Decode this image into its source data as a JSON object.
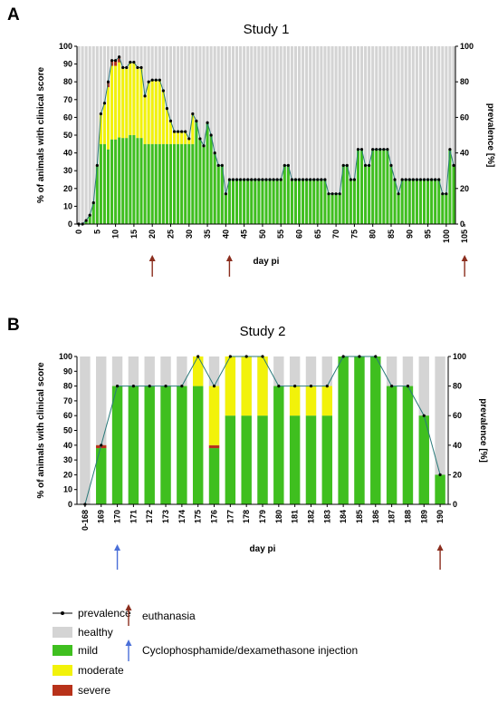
{
  "chart_data": [
    {
      "type": "bar",
      "panel_label": "A",
      "title": "Study 1",
      "xlabel": "day pi",
      "ylabel": "% of animals with clinical score",
      "y2label": "prevalence [%]",
      "ylim": [
        0,
        100
      ],
      "y_ticks": [
        0,
        10,
        20,
        30,
        40,
        50,
        60,
        70,
        80,
        90,
        100
      ],
      "y2_ticks": [
        0,
        20,
        40,
        60,
        80,
        100
      ],
      "x_ticks": [
        "0",
        "5",
        "10",
        "15",
        "20",
        "25",
        "30",
        "35",
        "40",
        "45",
        "50",
        "55",
        "60",
        "65",
        "70",
        "75",
        "80",
        "85",
        "90",
        "95",
        "100",
        "105"
      ],
      "stacked": true,
      "series_order": [
        "mild",
        "moderate",
        "severe",
        "healthy"
      ],
      "prevalence": [
        0,
        0,
        2,
        5,
        12,
        33,
        62,
        68,
        80,
        92,
        92,
        94,
        88,
        88,
        91,
        91,
        88,
        88,
        72,
        80,
        81,
        81,
        81,
        75,
        65,
        58,
        52,
        52,
        52,
        52,
        48,
        62,
        58,
        48,
        44,
        57,
        50,
        40,
        33,
        33,
        17,
        25,
        25,
        25,
        25,
        25,
        25,
        25,
        25,
        25,
        25,
        25,
        25,
        25,
        25,
        25,
        33,
        33,
        25,
        25,
        25,
        25,
        25,
        25,
        25,
        25,
        25,
        25,
        17,
        17,
        17,
        17,
        33,
        33,
        25,
        25,
        42,
        42,
        33,
        33,
        42,
        42,
        42,
        42,
        42,
        33,
        25,
        17,
        25,
        25,
        25,
        25,
        25,
        25,
        25,
        25,
        25,
        25,
        25,
        17,
        17,
        42,
        33
      ],
      "arrows_at": [
        20,
        41,
        105
      ]
    },
    {
      "type": "bar",
      "panel_label": "B",
      "title": "Study 2",
      "xlabel": "day pi",
      "ylabel": "% of animals with clinical score",
      "y2label": "prevalence [%]",
      "ylim": [
        0,
        100
      ],
      "y_ticks": [
        0,
        10,
        20,
        30,
        40,
        50,
        60,
        70,
        80,
        90,
        100
      ],
      "y2_ticks": [
        0,
        20,
        40,
        60,
        80,
        100
      ],
      "categories": [
        "0-168",
        "169",
        "170",
        "171",
        "172",
        "173",
        "174",
        "175",
        "176",
        "177",
        "178",
        "179",
        "180",
        "181",
        "182",
        "183",
        "184",
        "185",
        "186",
        "187",
        "188",
        "189",
        "190"
      ],
      "stacked": true,
      "series_order": [
        "mild",
        "moderate",
        "severe",
        "healthy"
      ],
      "series": [
        {
          "name": "mild",
          "values": [
            0,
            38,
            80,
            80,
            80,
            80,
            80,
            80,
            38,
            60,
            60,
            60,
            80,
            60,
            60,
            60,
            100,
            100,
            100,
            80,
            80,
            60,
            20
          ]
        },
        {
          "name": "moderate",
          "values": [
            0,
            0,
            0,
            0,
            0,
            0,
            0,
            20,
            40,
            40,
            40,
            40,
            0,
            20,
            20,
            20,
            0,
            0,
            0,
            0,
            0,
            0,
            0
          ]
        },
        {
          "name": "severe",
          "values": [
            0,
            2,
            0,
            0,
            0,
            0,
            0,
            0,
            2,
            0,
            0,
            0,
            0,
            0,
            0,
            0,
            0,
            0,
            0,
            0,
            0,
            0,
            0
          ]
        }
      ],
      "prevalence": [
        0,
        40,
        80,
        80,
        80,
        80,
        80,
        100,
        80,
        100,
        100,
        100,
        80,
        80,
        80,
        80,
        100,
        100,
        100,
        80,
        80,
        60,
        20
      ],
      "arrows": [
        {
          "category": "170",
          "color": "#4a6fd8"
        },
        {
          "category": "190",
          "color": "#8b2e1e"
        }
      ]
    }
  ],
  "legend": {
    "items": [
      {
        "label": "prevalence",
        "kind": "line"
      },
      {
        "label": "healthy",
        "kind": "box",
        "color": "#d4d4d4"
      },
      {
        "label": "mild",
        "kind": "box",
        "color": "#3fbf1f"
      },
      {
        "label": "moderate",
        "kind": "box",
        "color": "#f2f20a"
      },
      {
        "label": "severe",
        "kind": "box",
        "color": "#b8321a"
      }
    ],
    "arrows": [
      {
        "label": "euthanasia",
        "color": "#8b2e1e"
      },
      {
        "label": "Cyclophosphamide/dexamethasone injection",
        "color": "#4a6fd8"
      }
    ]
  },
  "colors": {
    "healthy": "#d4d4d4",
    "mild": "#3fbf1f",
    "moderate": "#f2f20a",
    "severe": "#b8321a",
    "line": "#2a7a7a",
    "euthanasia_arrow": "#8b2e1e",
    "injection_arrow": "#4a6fd8"
  }
}
